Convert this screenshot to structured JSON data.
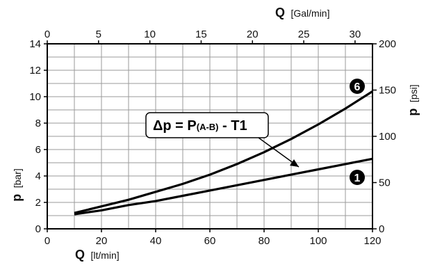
{
  "chart_data": {
    "type": "line",
    "x": {
      "label_symbol": "Q",
      "label_unit": "[lt/min]",
      "range": [
        0,
        120
      ],
      "ticks": [
        "0",
        "20",
        "40",
        "60",
        "80",
        "100",
        "120"
      ]
    },
    "x2": {
      "label_symbol": "Q",
      "label_unit": "[Gal/min]",
      "range": [
        0,
        31.7
      ],
      "ticks": [
        "0",
        "5",
        "10",
        "15",
        "20",
        "25",
        "30"
      ]
    },
    "y": {
      "label_symbol": "p",
      "label_unit": "[bar]",
      "range": [
        0,
        14
      ],
      "ticks": [
        "0",
        "2",
        "4",
        "6",
        "8",
        "10",
        "12",
        "14"
      ]
    },
    "y2": {
      "label_symbol": "p",
      "label_unit": "[psi]",
      "range": [
        0,
        200
      ],
      "ticks": [
        "0",
        "50",
        "100",
        "150",
        "200"
      ]
    },
    "grid": true,
    "series": [
      {
        "name": "6",
        "x": [
          10,
          20,
          30,
          40,
          50,
          60,
          70,
          80,
          90,
          100,
          110,
          120
        ],
        "y": [
          1.2,
          1.7,
          2.2,
          2.8,
          3.4,
          4.1,
          4.9,
          5.8,
          6.8,
          7.9,
          9.1,
          10.4
        ]
      },
      {
        "name": "1",
        "x": [
          10,
          20,
          30,
          40,
          50,
          60,
          70,
          80,
          90,
          100,
          110,
          120
        ],
        "y": [
          1.1,
          1.4,
          1.8,
          2.1,
          2.5,
          2.9,
          3.3,
          3.7,
          4.1,
          4.5,
          4.9,
          5.3
        ]
      }
    ],
    "annotation": {
      "lhs": "Δp = P",
      "sub": "(A-B)",
      "rhs": " - T1"
    }
  }
}
